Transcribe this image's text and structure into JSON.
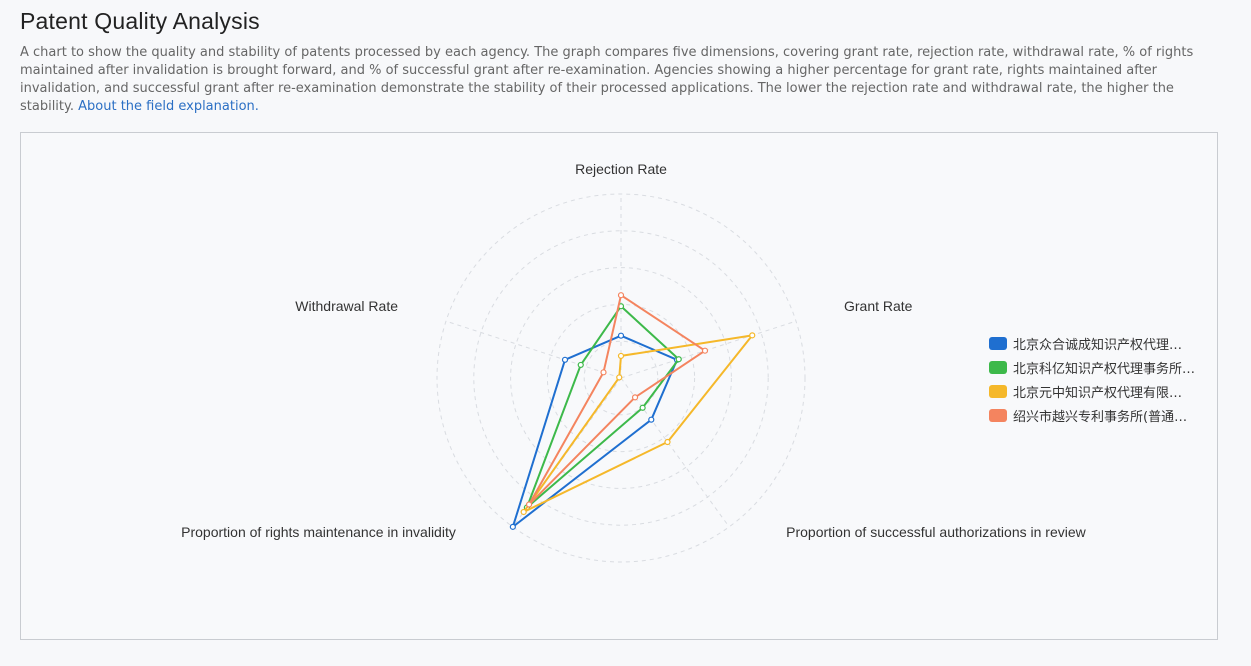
{
  "page": {
    "title": "Patent Quality Analysis",
    "description": "A chart to show the quality and stability of patents processed by each agency. The graph compares five dimensions, covering grant rate, rejection rate, withdrawal rate, % of rights maintained after invalidation is brought forward, and % of successful grant after re-examination. Agencies showing a higher percentage for grant rate, rights maintained after invalidation, and successful grant after re-examination demonstrate the stability of their processed applications. The lower the rejection rate and withdrawal rate, the higher the stability.",
    "link_label": "About the field explanation."
  },
  "chart_data": {
    "type": "radar",
    "indicators": [
      "Rejection Rate",
      "Grant Rate",
      "Proportion of successful authorizations in review",
      "Proportion of rights maintenance in invalidity",
      "Withdrawal Rate"
    ],
    "max": 100,
    "rings": 5,
    "legend_position": "right",
    "series": [
      {
        "name": "北京众合诚成知识产权代理…",
        "color": "#1f6fd0",
        "values": [
          23,
          32,
          28,
          100,
          32
        ]
      },
      {
        "name": "北京科亿知识产权代理事务所…",
        "color": "#3db94a",
        "values": [
          39,
          33,
          20,
          87,
          23
        ]
      },
      {
        "name": "北京元中知识产权代理有限…",
        "color": "#f5b82a",
        "values": [
          12,
          75,
          43,
          90,
          1
        ]
      },
      {
        "name": "绍兴市越兴专利事务所(普通…",
        "color": "#f4845f",
        "values": [
          45,
          48,
          13,
          85,
          10
        ]
      }
    ]
  }
}
